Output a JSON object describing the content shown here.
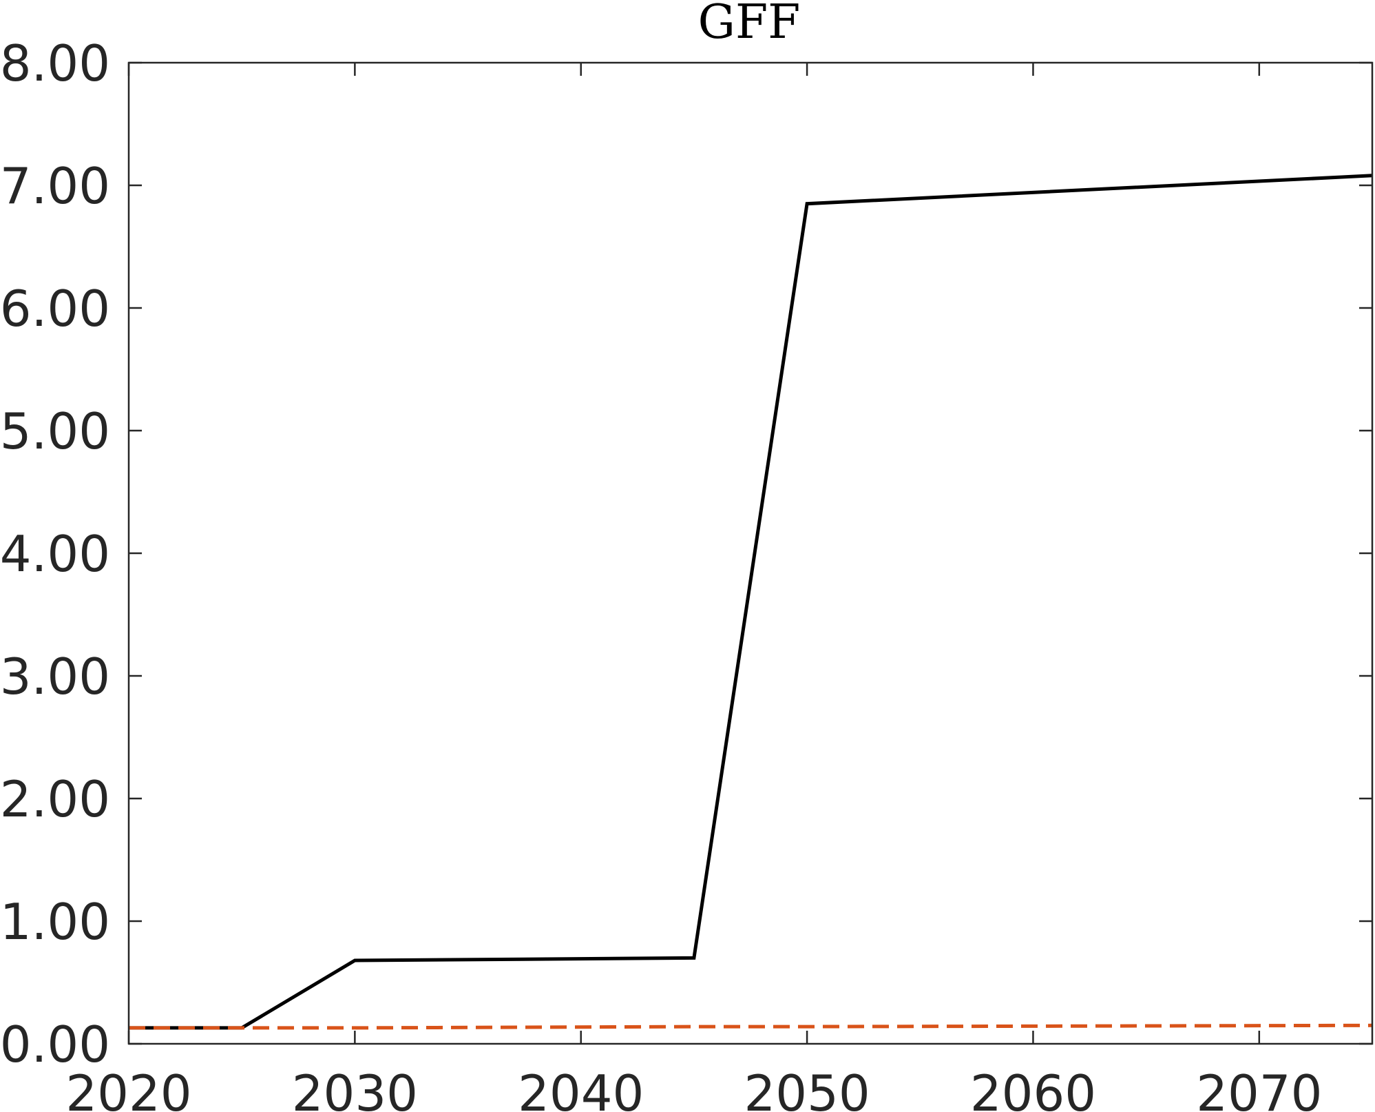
{
  "chart_data": {
    "type": "line",
    "title": "GFF",
    "xlabel": "",
    "ylabel": "",
    "xlim": [
      2020,
      2075
    ],
    "ylim": [
      0,
      8
    ],
    "xticks": [
      2020,
      2030,
      2040,
      2050,
      2060,
      2070
    ],
    "xtick_labels": [
      "2020",
      "2030",
      "2040",
      "2050",
      "2060",
      "2070"
    ],
    "yticks": [
      0,
      1,
      2,
      3,
      4,
      5,
      6,
      7,
      8
    ],
    "ytick_labels": [
      "0.00",
      "1.00",
      "2.00",
      "3.00",
      "4.00",
      "5.00",
      "6.00",
      "7.00",
      "8.00"
    ],
    "grid": false,
    "legend": false,
    "series": [
      {
        "style": "solid",
        "color": "#000000",
        "x": [
          2020,
          2025,
          2030,
          2045,
          2050,
          2075
        ],
        "y": [
          0.13,
          0.13,
          0.68,
          0.7,
          6.85,
          7.08
        ]
      },
      {
        "style": "dashed",
        "color": "#D95319",
        "x": [
          2020,
          2025,
          2030,
          2045,
          2050,
          2075
        ],
        "y": [
          0.13,
          0.13,
          0.13,
          0.14,
          0.14,
          0.15
        ]
      }
    ]
  }
}
